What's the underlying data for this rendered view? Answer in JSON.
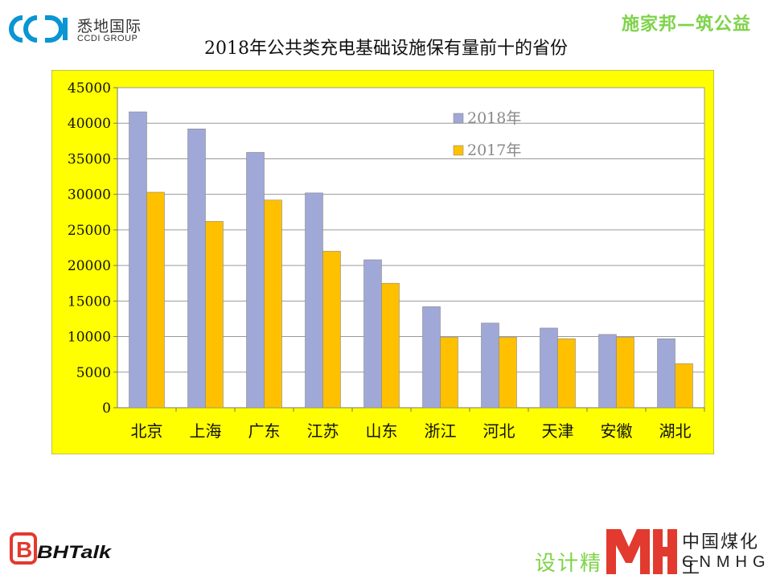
{
  "header": {
    "company_logo_cn": "悉地国际",
    "company_logo_en": "CCDI GROUP",
    "tagline": "施家邦—筑公益"
  },
  "footer": {
    "talk_logo": "BHTalk",
    "slogan": "设计精",
    "partner_cn": "中国煤化工",
    "partner_en": "CNMHG"
  },
  "colors": {
    "plot_bg": "#ffff00",
    "plot_area_bg": "#ffffff",
    "series_2018": "#a0a8d8",
    "series_2017": "#ffc000",
    "tagline": "#7fd34a",
    "logo_blue": "#0a95d3",
    "mh_red": "#e23a2e"
  },
  "chart_data": {
    "type": "bar",
    "title": "2018年公共类充电基础设施保有量前十的省份",
    "xlabel": "",
    "ylabel": "",
    "categories": [
      "北京",
      "上海",
      "广东",
      "江苏",
      "山东",
      "浙江",
      "河北",
      "天津",
      "安徽",
      "湖北"
    ],
    "series": [
      {
        "name": "2018年",
        "color": "#a0a8d8",
        "values": [
          41600,
          39200,
          35900,
          30200,
          20800,
          14200,
          11900,
          11200,
          10300,
          9700
        ]
      },
      {
        "name": "2017年",
        "color": "#ffc000",
        "values": [
          30300,
          26200,
          29200,
          22000,
          17500,
          9900,
          9900,
          9700,
          9900,
          6200
        ]
      }
    ],
    "ylim": [
      0,
      45000
    ],
    "yticks": [
      "0",
      "5000",
      "10000",
      "15000",
      "20000",
      "25000",
      "30000",
      "35000",
      "40000",
      "45000"
    ],
    "grid": "horizontal",
    "legend_position": "top-right"
  }
}
